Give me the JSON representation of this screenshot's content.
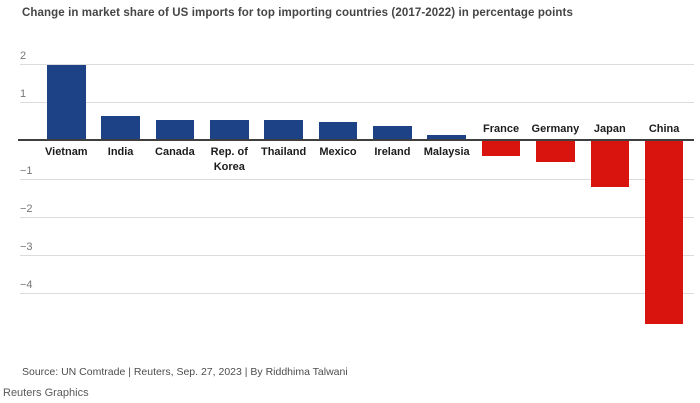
{
  "chart_data": {
    "type": "bar",
    "title": "Change in market share of US imports for top importing countries (2017-2022) in percentage points",
    "unit": "percentage points",
    "categories": [
      "Vietnam",
      "India",
      "Canada",
      "Rep. of\nKorea",
      "Thailand",
      "Mexico",
      "Ireland",
      "Malaysia",
      "France",
      "Germany",
      "Japan",
      "China"
    ],
    "values": [
      1.95,
      0.6,
      0.5,
      0.5,
      0.5,
      0.45,
      0.35,
      0.1,
      -0.4,
      -0.55,
      -1.2,
      -4.8
    ],
    "ylim": [
      -4.8,
      2
    ],
    "yticks": [
      {
        "label": "2",
        "value": 2
      },
      {
        "label": "1",
        "value": 1
      },
      {
        "label": "−1",
        "value": -1
      },
      {
        "label": "−2",
        "value": -2
      },
      {
        "label": "−3",
        "value": -3
      },
      {
        "label": "−4",
        "value": -4
      }
    ],
    "grid": true,
    "legend": "none",
    "positive_color": "#1e4286",
    "negative_color": "#d9140f"
  },
  "footer": {
    "source": "Source: UN Comtrade | Reuters, Sep. 27, 2023 | By Riddhima Talwani",
    "credit": "Reuters Graphics"
  }
}
